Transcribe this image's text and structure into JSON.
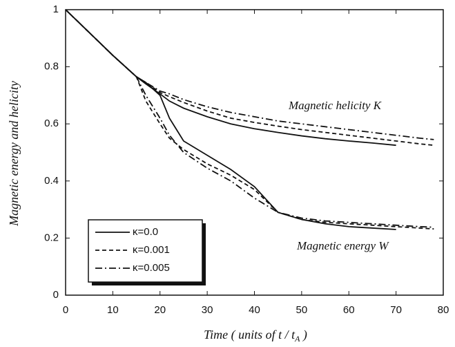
{
  "chart_data": {
    "type": "line",
    "ylabel": "Magnetic energy and helicity",
    "xlabel": "Time ( units of t / t",
    "xlabel_sub": "A",
    "xlabel_end": " )",
    "annotations": [
      "Magnetic helicity K",
      "Magnetic energy W"
    ],
    "x": [
      0,
      5,
      10,
      15,
      17,
      20,
      22,
      25,
      30,
      35,
      40,
      45,
      50,
      55,
      60,
      65,
      70,
      75,
      78
    ],
    "xlim": [
      0,
      80
    ],
    "xticks": [
      0,
      10,
      20,
      30,
      40,
      50,
      60,
      70,
      80
    ],
    "ylim": [
      0,
      1
    ],
    "yticks": [
      0,
      0.2,
      0.4,
      0.6,
      0.8,
      1
    ],
    "legend": "lower left",
    "series": [
      {
        "name": "κ=0.0",
        "color": "#111111",
        "dash": "solid",
        "helicity": [
          1,
          0.92,
          0.84,
          0.765,
          0.74,
          0.705,
          0.68,
          0.655,
          0.625,
          0.6,
          0.583,
          0.57,
          0.558,
          0.548,
          0.54,
          0.533,
          0.525,
          null,
          null
        ],
        "energy": [
          1,
          0.92,
          0.84,
          0.765,
          0.745,
          0.7,
          0.62,
          0.54,
          0.49,
          0.44,
          0.38,
          0.29,
          0.265,
          0.25,
          0.24,
          0.235,
          0.23,
          null,
          null
        ]
      },
      {
        "name": "κ=0.001",
        "color": "#111111",
        "dash": "dashed",
        "helicity": [
          1,
          0.92,
          0.84,
          0.765,
          0.745,
          0.71,
          0.695,
          0.675,
          0.645,
          0.62,
          0.605,
          0.592,
          0.58,
          0.57,
          0.56,
          0.55,
          0.54,
          0.53,
          0.525
        ],
        "energy": [
          1,
          0.92,
          0.84,
          0.765,
          0.68,
          0.6,
          0.55,
          0.51,
          0.46,
          0.42,
          0.37,
          0.29,
          0.265,
          0.255,
          0.25,
          0.245,
          0.24,
          0.235,
          0.232
        ]
      },
      {
        "name": "κ=0.005",
        "color": "#111111",
        "dash": "dashdot",
        "helicity": [
          1,
          0.92,
          0.84,
          0.765,
          0.745,
          0.715,
          0.705,
          0.685,
          0.66,
          0.64,
          0.625,
          0.61,
          0.6,
          0.59,
          0.58,
          0.57,
          0.56,
          0.55,
          0.545
        ],
        "energy": [
          1,
          0.92,
          0.84,
          0.765,
          0.7,
          0.62,
          0.56,
          0.5,
          0.445,
          0.4,
          0.34,
          0.29,
          0.27,
          0.26,
          0.255,
          0.25,
          0.245,
          0.24,
          0.238
        ]
      }
    ]
  }
}
